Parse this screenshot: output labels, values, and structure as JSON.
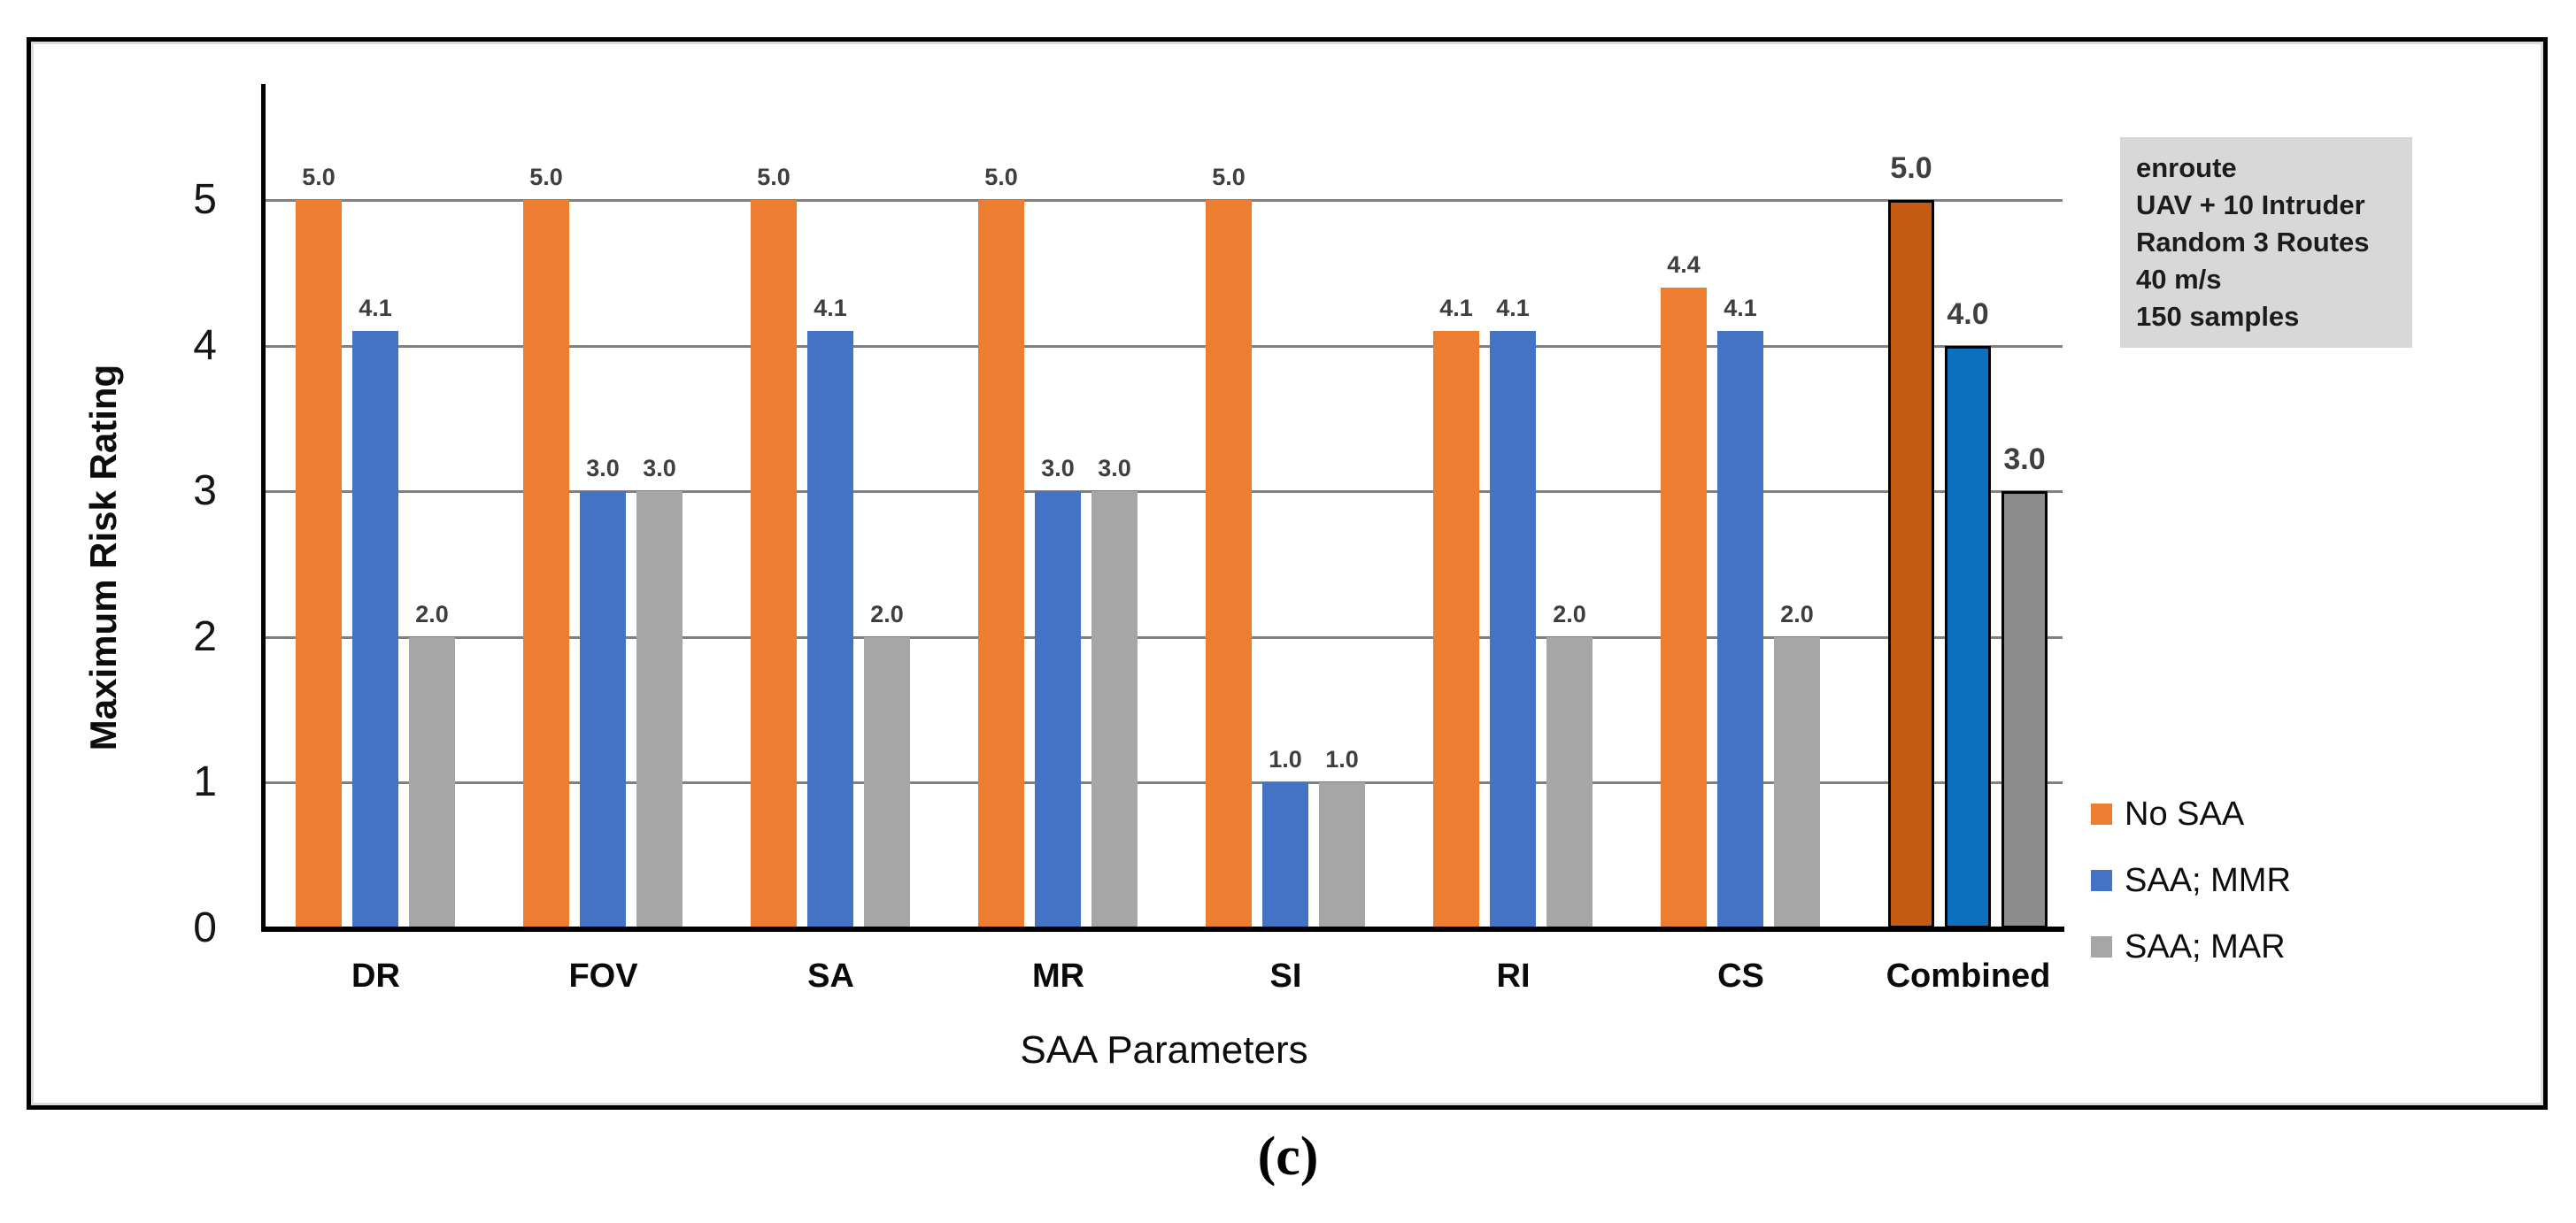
{
  "figure": {
    "caption": "(c)",
    "annotation_box": {
      "lines": [
        "enroute",
        "UAV + 10 Intruder",
        "Random 3 Routes",
        "40 m/s",
        "150 samples"
      ],
      "background": "#D8D8D8"
    }
  },
  "chart_data": {
    "type": "bar",
    "title": "",
    "xlabel": "SAA Parameters",
    "ylabel": "Maximum Risk Rating",
    "ylim": [
      0,
      5
    ],
    "yticks": [
      0,
      1,
      2,
      3,
      4,
      5
    ],
    "grid": true,
    "legend_position": "right",
    "categories": [
      "DR",
      "FOV",
      "SA",
      "MR",
      "SI",
      "RI",
      "CS",
      "Combined"
    ],
    "highlight_category": "Combined",
    "value_label_format": "0.0",
    "gridline_color": "#808080",
    "value_label_color": "#3F3F3F",
    "series": [
      {
        "name": "No SAA",
        "color": "#ED7D31",
        "highlight_color": "#C55A11",
        "values": [
          5.0,
          5.0,
          5.0,
          5.0,
          5.0,
          4.1,
          4.4,
          5.0
        ]
      },
      {
        "name": "SAA; MMR",
        "color": "#4472C4",
        "highlight_color": "#0C70BF",
        "values": [
          4.1,
          3.0,
          4.1,
          3.0,
          1.0,
          4.1,
          4.1,
          4.0
        ]
      },
      {
        "name": "SAA; MAR",
        "color": "#A6A6A6",
        "highlight_color": "#8C8C8C",
        "values": [
          2.0,
          3.0,
          2.0,
          3.0,
          1.0,
          2.0,
          2.0,
          3.0
        ]
      }
    ]
  }
}
